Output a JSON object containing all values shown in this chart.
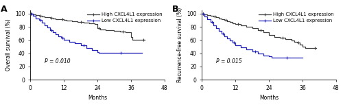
{
  "panel_A": {
    "label": "A",
    "ylabel": "Overall survival (%)",
    "xlabel": "Months",
    "p_value": "P = 0.010",
    "p_x": 5,
    "p_y": 25,
    "xlim": [
      0,
      48
    ],
    "ylim": [
      0,
      105
    ],
    "xticks": [
      0,
      12,
      24,
      36,
      48
    ],
    "yticks": [
      0,
      20,
      40,
      60,
      80,
      100
    ],
    "high_x": [
      0,
      0.5,
      1,
      2,
      3,
      4,
      5,
      6,
      7,
      8,
      9,
      10,
      11,
      12,
      13,
      15,
      17,
      19,
      21,
      23,
      24,
      25,
      27,
      30,
      32,
      34,
      36,
      36.5,
      40,
      41
    ],
    "high_y": [
      100,
      100,
      99,
      98,
      97,
      96,
      95,
      95,
      94,
      93,
      92,
      91,
      91,
      90,
      89,
      88,
      87,
      86,
      85,
      84,
      78,
      76,
      75,
      74,
      73,
      72,
      65,
      60,
      60,
      60
    ],
    "low_x": [
      0,
      1,
      2,
      3,
      4,
      5,
      6,
      7,
      8,
      9,
      10,
      11,
      12,
      14,
      16,
      18,
      20,
      22,
      24,
      24.5,
      40
    ],
    "low_y": [
      100,
      97,
      93,
      90,
      86,
      82,
      79,
      75,
      72,
      69,
      66,
      63,
      60,
      57,
      55,
      52,
      48,
      45,
      42,
      41,
      41
    ]
  },
  "panel_B": {
    "label": "B",
    "ylabel": "Recurrence-free survival (%)",
    "xlabel": "Months",
    "p_value": "P = 0.015",
    "p_x": 5,
    "p_y": 25,
    "xlim": [
      0,
      48
    ],
    "ylim": [
      0,
      105
    ],
    "xticks": [
      0,
      12,
      24,
      36,
      48
    ],
    "yticks": [
      0,
      20,
      40,
      60,
      80,
      100
    ],
    "high_x": [
      0,
      1,
      2,
      3,
      4,
      5,
      6,
      7,
      8,
      9,
      10,
      11,
      12,
      14,
      16,
      18,
      20,
      22,
      24,
      26,
      28,
      30,
      32,
      33,
      34,
      35,
      36,
      37,
      38,
      40,
      41
    ],
    "high_y": [
      100,
      99,
      98,
      97,
      96,
      95,
      93,
      92,
      90,
      88,
      87,
      85,
      84,
      82,
      80,
      78,
      75,
      72,
      68,
      65,
      63,
      61,
      59,
      57,
      56,
      53,
      50,
      48,
      48,
      48,
      48
    ],
    "low_x": [
      0,
      1,
      2,
      3,
      4,
      5,
      6,
      7,
      8,
      9,
      10,
      11,
      12,
      14,
      16,
      18,
      20,
      22,
      24,
      25,
      36
    ],
    "low_y": [
      100,
      96,
      91,
      87,
      82,
      78,
      74,
      70,
      66,
      62,
      59,
      56,
      52,
      49,
      46,
      43,
      40,
      37,
      35,
      33,
      33
    ]
  },
  "high_color": "#404040",
  "low_color": "#2222bb",
  "legend_high": "High CXCL4L1 expression",
  "legend_low": "Low CXCL4L1 expression",
  "bg_color": "#ffffff",
  "fontsize_label": 5.5,
  "fontsize_tick": 5.5,
  "fontsize_pval": 5.5,
  "fontsize_legend": 5.0,
  "fontsize_panel_label": 9,
  "linewidth": 0.9,
  "marker_size": 3.0,
  "marker_style": "+"
}
